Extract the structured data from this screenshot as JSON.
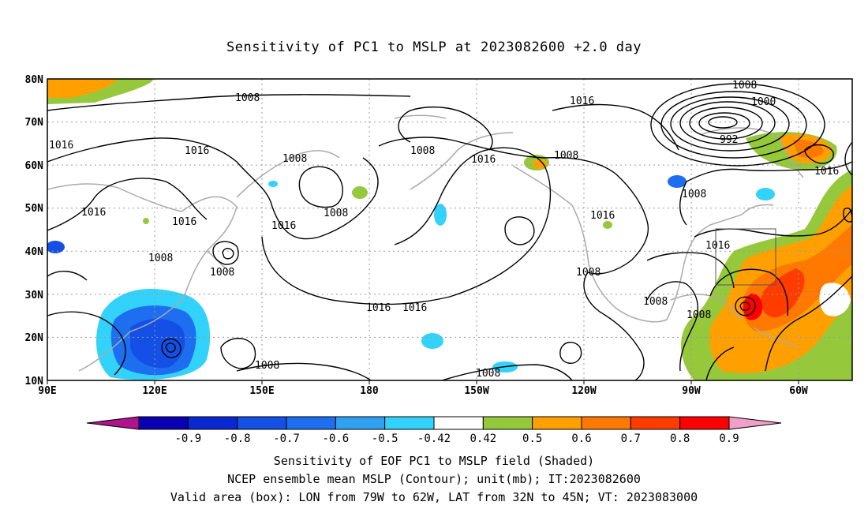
{
  "title": "Sensitivity of PC1 to MSLP at 2023082600 +2.0 day",
  "map": {
    "lon_labels": [
      "90E",
      "120E",
      "150E",
      "180",
      "150W",
      "120W",
      "90W",
      "60W"
    ],
    "lat_labels": [
      "80N",
      "70N",
      "60N",
      "50N",
      "40N",
      "30N",
      "20N",
      "10N"
    ],
    "contour_labels": [
      "1008",
      "1016",
      "1016",
      "1016",
      "1008",
      "1008",
      "1016",
      "1016",
      "1008",
      "1008",
      "1016",
      "1008",
      "1008",
      "1016",
      "1016",
      "1008",
      "1008",
      "1016",
      "1016",
      "1008",
      "1000",
      "992",
      "1016",
      "1008",
      "1016",
      "1008",
      "1008",
      "1008"
    ],
    "box": {
      "lon_from": "79W",
      "lon_to": "62W",
      "lat_from": "32N",
      "lat_to": "45N"
    }
  },
  "colorbar": {
    "labels": [
      "-0.9",
      "-0.8",
      "-0.7",
      "-0.6",
      "-0.5",
      "-0.42",
      "0.42",
      "0.5",
      "0.6",
      "0.7",
      "0.8",
      "0.9"
    ],
    "colors": [
      "#b0148c",
      "#0a00b4",
      "#0a28d2",
      "#1450e6",
      "#1e6ef0",
      "#32a0f0",
      "#32d2fa",
      "#ffffff",
      "#96c83c",
      "#ffa000",
      "#ff7800",
      "#ff3c00",
      "#ff0000",
      "#f0a0c8"
    ]
  },
  "footer": {
    "line1": "Sensitivity of EOF PC1 to MSLP field (Shaded)",
    "line2": "NCEP ensemble mean MSLP (Contour); unit(mb); IT:2023082600",
    "line3": "Valid area (box): LON from 79W to 62W, LAT from 32N to 45N; VT: 2023083000"
  }
}
